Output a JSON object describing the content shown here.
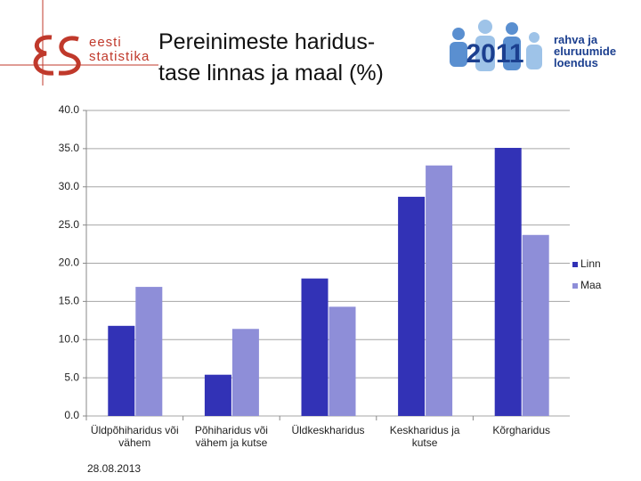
{
  "logos": {
    "left": [
      "eesti",
      "statistika"
    ],
    "right": [
      "rahva ja",
      "eluruumide",
      "loendus"
    ]
  },
  "chart_data": {
    "type": "bar",
    "title": [
      "Pereinimeste haridus-",
      "tase linnas ja maal (%)"
    ],
    "categories": [
      "Üldpõhiharidus või vähem",
      "Põhiharidus või vähem ja kutse",
      "Üldkeskharidus",
      "Keskharidus ja kutse",
      "Kõrgharidus"
    ],
    "series": [
      {
        "name": "Linn",
        "color": "#3232b6",
        "values": [
          11.8,
          5.4,
          18.0,
          28.7,
          35.1
        ]
      },
      {
        "name": "Maa",
        "color": "#8e8ed8",
        "values": [
          16.9,
          11.4,
          14.3,
          32.8,
          23.7
        ]
      }
    ],
    "ylim": [
      0,
      40
    ],
    "yticks": [
      {
        "value": 0,
        "label": "0.0"
      },
      {
        "value": 5,
        "label": "5.0"
      },
      {
        "value": 10,
        "label": "10.0"
      },
      {
        "value": 15,
        "label": "15.0"
      },
      {
        "value": 20,
        "label": "20.0"
      },
      {
        "value": 25,
        "label": "25.0"
      },
      {
        "value": 30,
        "label": "30.0"
      },
      {
        "value": 35,
        "label": "35.0"
      },
      {
        "value": 40,
        "label": "40.0"
      }
    ],
    "grid": true,
    "legend": "right"
  },
  "footer": "28.08.2013"
}
